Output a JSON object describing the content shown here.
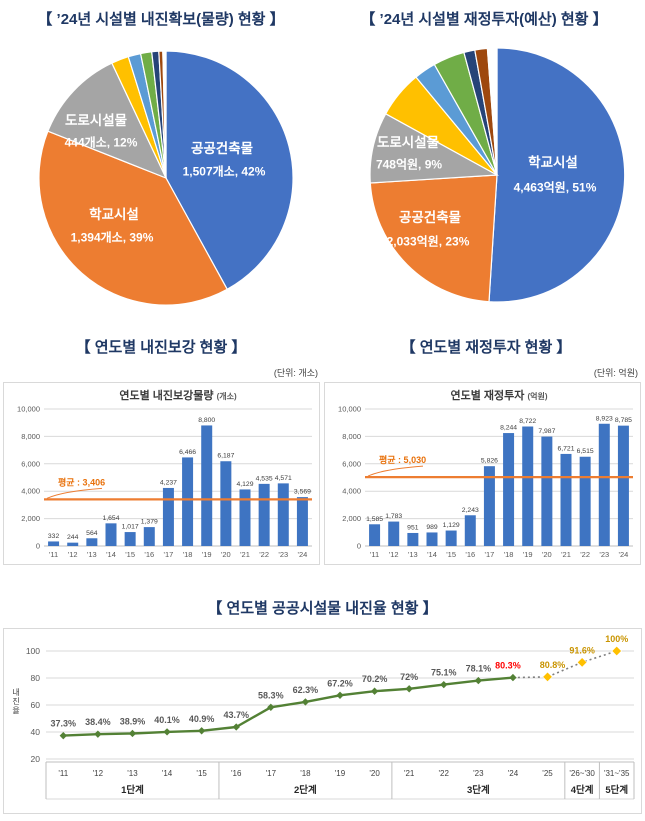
{
  "colors": {
    "title_navy": "#1F3864",
    "pie_blue": "#4472C4",
    "pie_orange": "#ED7D31",
    "pie_gray": "#A5A5A5",
    "pie_gold": "#FFC000",
    "pie_lightblue": "#5B9BD5",
    "pie_green": "#70AD47",
    "pie_navy": "#264478",
    "pie_darkred": "#9E480E",
    "bar_blue": "#3E74C2",
    "avg_orange": "#ED7D31",
    "line_green": "#538135",
    "proj_gray": "#7F7F7F",
    "proj_gold": "#FFC000",
    "label_red": "#FF0000",
    "label_gold": "#C99400"
  },
  "chart_data": [
    {
      "id": "pie-quantity",
      "type": "pie",
      "section_title": "【 ’24년 시설별 내진확보(물량) 현황 】",
      "slices": [
        {
          "label": "공공건축물",
          "value_label": "1,507개소, 42%",
          "pct": 42,
          "color": "#4472C4"
        },
        {
          "label": "학교시설",
          "value_label": "1,394개소, 39%",
          "pct": 39,
          "color": "#ED7D31"
        },
        {
          "label": "도로시설물",
          "value_label": "444개소, 12%",
          "pct": 12,
          "color": "#A5A5A5"
        },
        {
          "label": "",
          "pct": 2.2,
          "color": "#FFC000"
        },
        {
          "label": "",
          "pct": 1.6,
          "color": "#5B9BD5"
        },
        {
          "label": "",
          "pct": 1.4,
          "color": "#70AD47"
        },
        {
          "label": "",
          "pct": 0.9,
          "color": "#264478"
        },
        {
          "label": "",
          "pct": 0.5,
          "color": "#9E480E"
        },
        {
          "label": "",
          "pct": 0.4,
          "color": "#FFFFFF"
        }
      ]
    },
    {
      "id": "pie-budget",
      "type": "pie",
      "section_title": "【 ’24년 시설별 재정투자(예산) 현황 】",
      "slices": [
        {
          "label": "학교시설",
          "value_label": "4,463억원, 51%",
          "pct": 51,
          "color": "#4472C4"
        },
        {
          "label": "공공건축물",
          "value_label": "2,033억원, 23%",
          "pct": 23,
          "color": "#ED7D31"
        },
        {
          "label": "도로시설물",
          "value_label": "748억원, 9%",
          "pct": 9,
          "color": "#A5A5A5"
        },
        {
          "label": "",
          "pct": 6.0,
          "color": "#FFC000"
        },
        {
          "label": "",
          "pct": 2.8,
          "color": "#5B9BD5"
        },
        {
          "label": "",
          "pct": 4.0,
          "color": "#70AD47"
        },
        {
          "label": "",
          "pct": 1.4,
          "color": "#264478"
        },
        {
          "label": "",
          "pct": 1.6,
          "color": "#9E480E"
        },
        {
          "label": "",
          "pct": 1.2,
          "color": "#FFFFFF"
        }
      ]
    },
    {
      "id": "bar-retrofit",
      "type": "bar",
      "section_title": "【 연도별 내진보강 현황 】",
      "unit_label": "(단위: 개소)",
      "title": "연도별 내진보강물량",
      "title_unit": "(개소)",
      "categories": [
        "'11",
        "'12",
        "'13",
        "'14",
        "'15",
        "'16",
        "'17",
        "'18",
        "'19",
        "'20",
        "'21",
        "'22",
        "'23",
        "'24"
      ],
      "values": [
        332,
        244,
        564,
        1654,
        1017,
        1379,
        4237,
        6466,
        8800,
        6187,
        4129,
        4535,
        4571,
        3569
      ],
      "value_labels": [
        "332",
        "244",
        "564",
        "1,654",
        "1,017",
        "1,379",
        "4,237",
        "6,466",
        "8,800",
        "6,187",
        "4,129",
        "4,535",
        "4,571",
        "3,569"
      ],
      "avg_value": 3406,
      "avg_label": "평균 : 3,406",
      "ylim": [
        0,
        10000
      ],
      "y_ticks": [
        "0",
        "2,000",
        "4,000",
        "6,000",
        "8,000",
        "10,000"
      ]
    },
    {
      "id": "bar-investment",
      "type": "bar",
      "section_title": "【 연도별 재정투자 현황 】",
      "unit_label": "(단위: 억원)",
      "title": "연도별 재정투자",
      "title_unit": "(억원)",
      "categories": [
        "'11",
        "'12",
        "'13",
        "'14",
        "'15",
        "'16",
        "'17",
        "'18",
        "'19",
        "'20",
        "'21",
        "'22",
        "'23",
        "'24"
      ],
      "values": [
        1585,
        1783,
        951,
        989,
        1129,
        2243,
        5826,
        8244,
        8722,
        7987,
        6721,
        6515,
        8923,
        8785
      ],
      "value_labels": [
        "1,585",
        "1,783",
        "951",
        "989",
        "1,129",
        "2,243",
        "5,826",
        "8,244",
        "8,722",
        "7,987",
        "6,721",
        "6,515",
        "8,923",
        "8,785"
      ],
      "avg_value": 5030,
      "avg_label": "평균 : 5,030",
      "ylim": [
        0,
        10000
      ],
      "y_ticks": [
        "0",
        "2,000",
        "4,000",
        "6,000",
        "8,000",
        "10,000"
      ]
    },
    {
      "id": "line-seismic-rate",
      "type": "line",
      "section_title": "【 연도별 공공시설물 내진율 현황 】",
      "ylabel": "내진율",
      "categories": [
        "'11",
        "'12",
        "'13",
        "'14",
        "'15",
        "'16",
        "'17",
        "'18",
        "'19",
        "'20",
        "'21",
        "'22",
        "'23",
        "'24",
        "'25",
        "'26~'30",
        "'31~'35"
      ],
      "values": [
        37.3,
        38.4,
        38.9,
        40.1,
        40.9,
        43.7,
        58.3,
        62.3,
        67.2,
        70.2,
        72,
        75.1,
        78.1,
        80.3,
        80.8,
        91.6,
        100
      ],
      "value_labels": [
        "37.3%",
        "38.4%",
        "38.9%",
        "40.1%",
        "40.9%",
        "43.7%",
        "58.3%",
        "62.3%",
        "67.2%",
        "70.2%",
        "72%",
        "75.1%",
        "78.1%",
        "80.3%",
        "80.8%",
        "91.6%",
        "100%"
      ],
      "solid_count": 14,
      "current_index": 13,
      "phases": [
        {
          "label": "1단계",
          "span": 5
        },
        {
          "label": "2단계",
          "span": 5
        },
        {
          "label": "3단계",
          "span": 5
        },
        {
          "label": "4단계",
          "span": 1
        },
        {
          "label": "5단계",
          "span": 1
        }
      ],
      "y_ticks": [
        "20",
        "40",
        "60",
        "80",
        "100"
      ],
      "ylim": [
        20,
        100
      ]
    }
  ]
}
